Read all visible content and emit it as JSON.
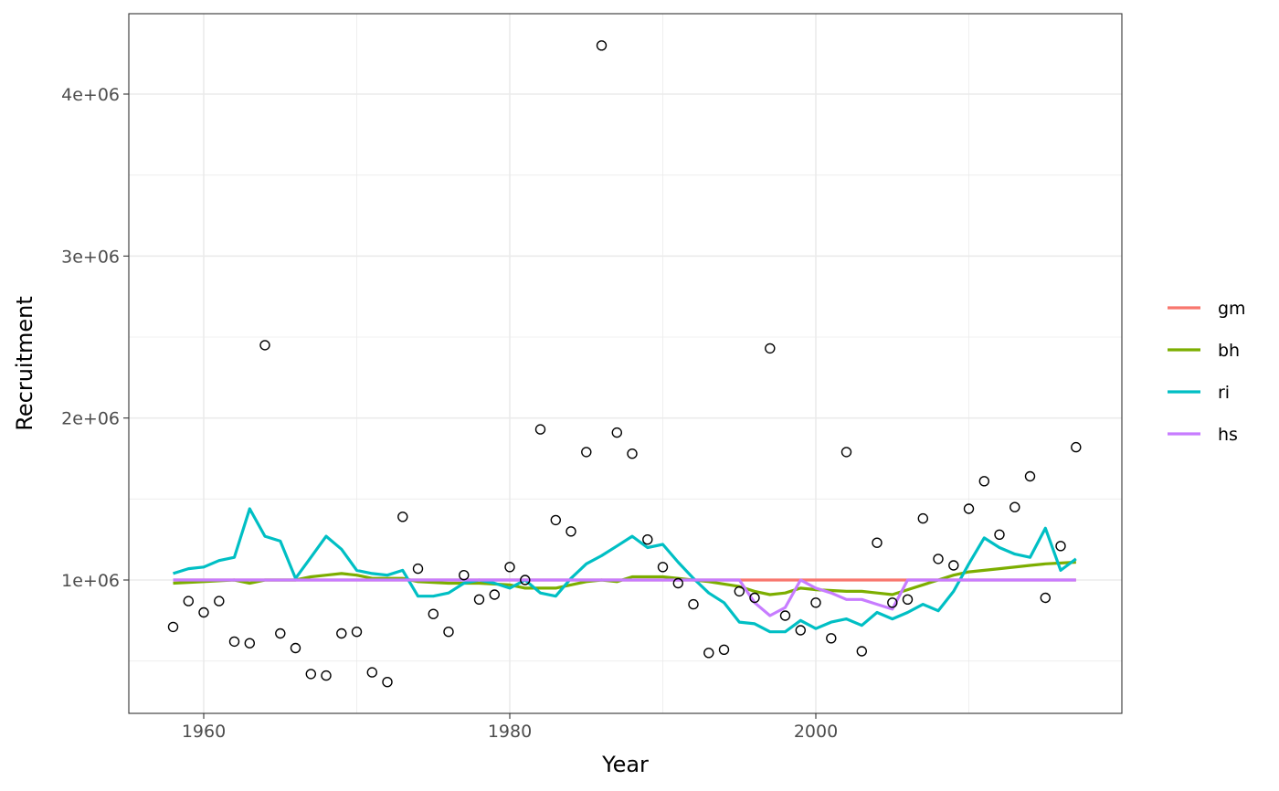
{
  "chart_data": {
    "type": "line",
    "xlabel": "Year",
    "ylabel": "Recruitment",
    "xlim": [
      1955,
      2020
    ],
    "ylim": [
      0,
      4500000
    ],
    "x_ticks": [
      1960,
      1980,
      2000
    ],
    "x_tick_labels": [
      "1960",
      "1980",
      "2000"
    ],
    "y_ticks": [
      1000000,
      2000000,
      3000000,
      4000000
    ],
    "y_tick_labels": [
      "1e+06",
      "2e+06",
      "3e+06",
      "4e+06"
    ],
    "x_minor_ticks": [
      1970,
      1990,
      2010
    ],
    "y_minor_ticks": [
      500000,
      1500000,
      2500000,
      3500000
    ],
    "grid": true,
    "legend_position": "right",
    "observed": {
      "marker": "open-circle",
      "x": [
        1958,
        1959,
        1960,
        1961,
        1962,
        1963,
        1964,
        1965,
        1966,
        1967,
        1968,
        1969,
        1970,
        1971,
        1972,
        1973,
        1974,
        1975,
        1976,
        1977,
        1978,
        1979,
        1980,
        1981,
        1982,
        1983,
        1984,
        1985,
        1986,
        1987,
        1988,
        1989,
        1990,
        1991,
        1992,
        1993,
        1994,
        1995,
        1996,
        1997,
        1998,
        1999,
        2000,
        2001,
        2002,
        2003,
        2004,
        2005,
        2006,
        2007,
        2008,
        2009,
        2010,
        2011,
        2012,
        2013,
        2014,
        2015,
        2016,
        2017
      ],
      "y": [
        710000,
        870000,
        800000,
        870000,
        620000,
        610000,
        2450000,
        670000,
        580000,
        420000,
        410000,
        670000,
        680000,
        430000,
        370000,
        1390000,
        1070000,
        790000,
        680000,
        1030000,
        880000,
        910000,
        1080000,
        1000000,
        1930000,
        1370000,
        1300000,
        1790000,
        4300000,
        1910000,
        1780000,
        1250000,
        1080000,
        980000,
        850000,
        550000,
        570000,
        930000,
        890000,
        2430000,
        780000,
        690000,
        860000,
        640000,
        1790000,
        560000,
        1230000,
        860000,
        880000,
        1380000,
        1130000,
        1090000,
        1440000,
        1610000,
        1280000,
        1450000,
        1640000,
        890000,
        1210000,
        1820000
      ]
    },
    "series": [
      {
        "name": "gm",
        "color": "#F8766D",
        "x": [
          1958,
          2017
        ],
        "values": [
          1000000,
          1000000
        ]
      },
      {
        "name": "bh",
        "color": "#7CAE00",
        "x": [
          1958,
          1960,
          1962,
          1963,
          1964,
          1966,
          1967,
          1968,
          1969,
          1970,
          1971,
          1972,
          1973,
          1974,
          1976,
          1978,
          1980,
          1981,
          1983,
          1985,
          1986,
          1987,
          1988,
          1990,
          1991,
          1993,
          1995,
          1996,
          1997,
          1998,
          1999,
          2000,
          2002,
          2003,
          2004,
          2005,
          2006,
          2007,
          2008,
          2009,
          2010,
          2012,
          2014,
          2015,
          2017
        ],
        "values": [
          980000,
          990000,
          1000000,
          980000,
          1000000,
          1000000,
          1020000,
          1030000,
          1040000,
          1030000,
          1010000,
          1010000,
          1010000,
          990000,
          980000,
          980000,
          970000,
          950000,
          950000,
          990000,
          1000000,
          990000,
          1020000,
          1020000,
          1010000,
          990000,
          960000,
          930000,
          910000,
          920000,
          950000,
          940000,
          930000,
          930000,
          920000,
          910000,
          940000,
          970000,
          1000000,
          1030000,
          1050000,
          1070000,
          1090000,
          1100000,
          1110000
        ]
      },
      {
        "name": "ri",
        "color": "#00BFC4",
        "x": [
          1958,
          1959,
          1960,
          1961,
          1962,
          1963,
          1964,
          1965,
          1966,
          1967,
          1968,
          1969,
          1970,
          1971,
          1972,
          1973,
          1974,
          1975,
          1976,
          1977,
          1978,
          1979,
          1980,
          1981,
          1982,
          1983,
          1984,
          1985,
          1986,
          1987,
          1988,
          1989,
          1990,
          1991,
          1992,
          1993,
          1994,
          1995,
          1996,
          1997,
          1998,
          1999,
          2000,
          2001,
          2002,
          2003,
          2004,
          2005,
          2006,
          2007,
          2008,
          2009,
          2010,
          2011,
          2012,
          2013,
          2014,
          2015,
          2016,
          2017
        ],
        "values": [
          1040000,
          1070000,
          1080000,
          1120000,
          1140000,
          1440000,
          1270000,
          1240000,
          1010000,
          1140000,
          1270000,
          1190000,
          1060000,
          1040000,
          1030000,
          1060000,
          900000,
          900000,
          920000,
          980000,
          1000000,
          980000,
          950000,
          1000000,
          920000,
          900000,
          1010000,
          1100000,
          1150000,
          1210000,
          1270000,
          1200000,
          1220000,
          1110000,
          1010000,
          920000,
          860000,
          740000,
          730000,
          680000,
          680000,
          750000,
          700000,
          740000,
          760000,
          720000,
          800000,
          760000,
          800000,
          850000,
          810000,
          930000,
          1100000,
          1260000,
          1200000,
          1160000,
          1140000,
          1320000,
          1060000,
          1130000
        ]
      },
      {
        "name": "hs",
        "color": "#C77CFF",
        "x": [
          1958,
          1995,
          1996,
          1997,
          1998,
          1999,
          2000,
          2001,
          2002,
          2003,
          2004,
          2005,
          2006,
          2017
        ],
        "values": [
          1000000,
          1000000,
          860000,
          780000,
          830000,
          1000000,
          950000,
          920000,
          880000,
          880000,
          850000,
          820000,
          1000000,
          1000000
        ]
      }
    ]
  }
}
